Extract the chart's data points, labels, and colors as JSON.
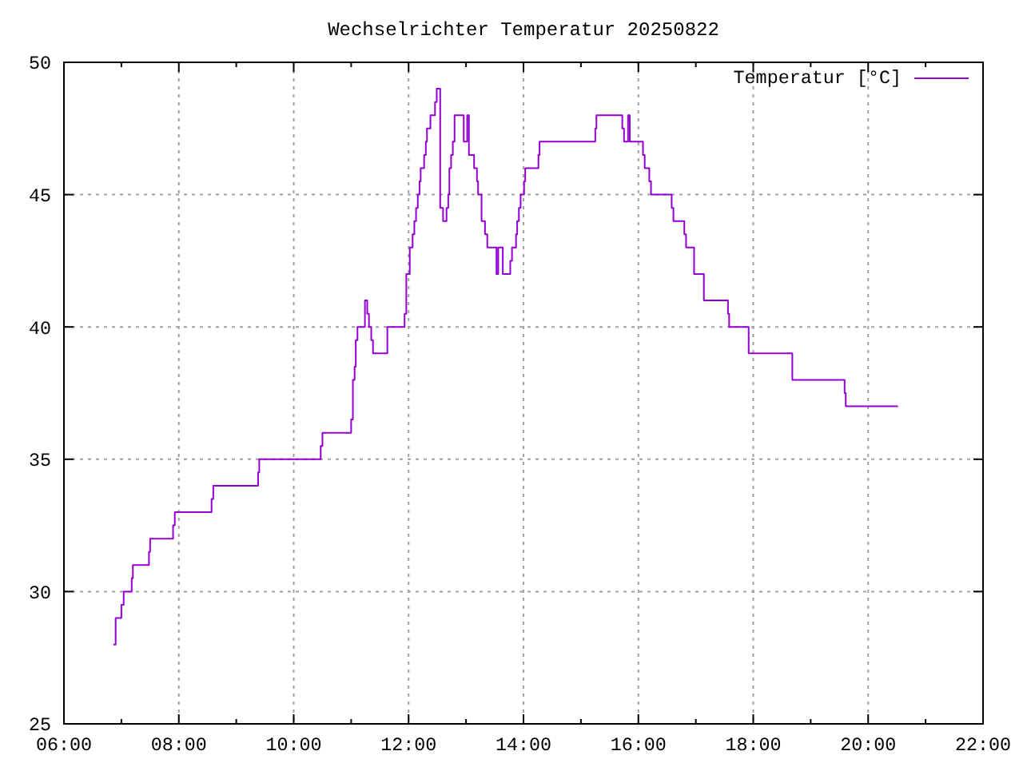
{
  "chart_data": {
    "type": "step",
    "title": "Wechselrichter Temperatur 20250822",
    "x": [
      6.86,
      6.9,
      7.0,
      7.04,
      7.18,
      7.2,
      7.48,
      7.5,
      7.9,
      7.93,
      8.57,
      8.6,
      9.38,
      9.4,
      10.47,
      10.5,
      11.0,
      11.03,
      11.06,
      11.08,
      11.11,
      11.24,
      11.28,
      11.31,
      11.35,
      11.38,
      11.63,
      11.93,
      11.96,
      12.02,
      12.07,
      12.1,
      12.13,
      12.16,
      12.19,
      12.21,
      12.27,
      12.3,
      12.32,
      12.38,
      12.46,
      12.49,
      12.55,
      12.6,
      12.66,
      12.69,
      12.71,
      12.74,
      12.77,
      12.8,
      12.96,
      13.02,
      13.05,
      13.14,
      13.19,
      13.21,
      13.27,
      13.33,
      13.37,
      13.53,
      13.56,
      13.64,
      13.77,
      13.8,
      13.87,
      13.89,
      13.92,
      13.95,
      14.01,
      14.03,
      14.26,
      14.28,
      15.25,
      15.27,
      15.72,
      15.75,
      15.82,
      15.85,
      16.08,
      16.11,
      16.19,
      16.22,
      16.58,
      16.61,
      16.8,
      16.83,
      16.97,
      17.14,
      17.56,
      17.58,
      17.92,
      18.68,
      19.59,
      19.61,
      20.52
    ],
    "series": [
      {
        "name": "Temperatur [°C]",
        "color": "#9400d3",
        "values": [
          28,
          29,
          29.5,
          30,
          30.5,
          31,
          31.5,
          32,
          32.5,
          33,
          33.5,
          34,
          34.5,
          35,
          35.5,
          36,
          36.5,
          38,
          38.5,
          39.5,
          40,
          41,
          40.5,
          40,
          39.5,
          39,
          40,
          40.5,
          42,
          43,
          43.5,
          44,
          44.5,
          45,
          45.5,
          46,
          46.5,
          47,
          47.5,
          48,
          48.5,
          49,
          44.5,
          44,
          44.5,
          45,
          46,
          46.5,
          47,
          48,
          47,
          48,
          46.5,
          46,
          45.5,
          45,
          44,
          43.5,
          43,
          42,
          43,
          42,
          42.5,
          43,
          43.5,
          44,
          44.5,
          45,
          45.5,
          46,
          46.5,
          47,
          47.5,
          48,
          47.5,
          47,
          48,
          47,
          46.5,
          46,
          45.5,
          45,
          44.5,
          44,
          43.5,
          43,
          42,
          41,
          40.5,
          40,
          39,
          38,
          37.5,
          37,
          37
        ]
      }
    ],
    "xlim": [
      6,
      22
    ],
    "xticks": [
      {
        "value": 6,
        "label": "06:00"
      },
      {
        "value": 7,
        "label": null
      },
      {
        "value": 8,
        "label": "08:00"
      },
      {
        "value": 9,
        "label": null
      },
      {
        "value": 10,
        "label": "10:00"
      },
      {
        "value": 11,
        "label": null
      },
      {
        "value": 12,
        "label": "12:00"
      },
      {
        "value": 13,
        "label": null
      },
      {
        "value": 14,
        "label": "14:00"
      },
      {
        "value": 15,
        "label": null
      },
      {
        "value": 16,
        "label": "16:00"
      },
      {
        "value": 17,
        "label": null
      },
      {
        "value": 18,
        "label": "18:00"
      },
      {
        "value": 19,
        "label": null
      },
      {
        "value": 20,
        "label": "20:00"
      },
      {
        "value": 21,
        "label": null
      },
      {
        "value": 22,
        "label": "22:00"
      }
    ],
    "ylim": [
      25,
      50
    ],
    "yticks": [
      25,
      30,
      35,
      40,
      45,
      50
    ],
    "grid": true,
    "legend": "top right",
    "line_style": "solid",
    "marker": "none"
  }
}
